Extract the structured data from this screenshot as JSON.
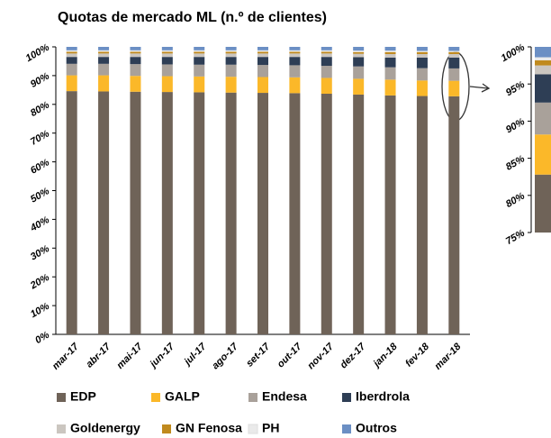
{
  "chart_data": [
    {
      "type": "stacked_bar",
      "title": "Quotas de mercado ML (n.º de clientes)",
      "categories": [
        "mar-17",
        "abr-17",
        "mai-17",
        "jun-17",
        "jul-17",
        "ago-17",
        "set-17",
        "out-17",
        "nov-17",
        "dez-17",
        "jan-18",
        "fev-18",
        "mar-18"
      ],
      "series": [
        {
          "name": "EDP",
          "color": "#6f6358",
          "values": [
            84.6,
            84.5,
            84.4,
            84.3,
            84.2,
            84.1,
            84.0,
            83.9,
            83.7,
            83.4,
            83.1,
            82.9,
            82.8
          ]
        },
        {
          "name": "GALP",
          "color": "#fbb829",
          "values": [
            5.5,
            5.6,
            5.5,
            5.5,
            5.5,
            5.5,
            5.5,
            5.5,
            5.5,
            5.5,
            5.5,
            5.4,
            5.4
          ]
        },
        {
          "name": "Endesa",
          "color": "#a9a19a",
          "values": [
            4.0,
            4.0,
            4.1,
            4.1,
            4.1,
            4.2,
            4.2,
            4.2,
            4.2,
            4.3,
            4.3,
            4.3,
            4.3
          ]
        },
        {
          "name": "Iberdrola",
          "color": "#2e3e55",
          "values": [
            2.4,
            2.4,
            2.5,
            2.6,
            2.7,
            2.7,
            2.8,
            2.9,
            3.1,
            3.2,
            3.4,
            3.7,
            3.8
          ]
        },
        {
          "name": "Goldenergy",
          "color": "#cbc6c0",
          "values": [
            1.2,
            1.2,
            1.2,
            1.2,
            1.2,
            1.2,
            1.2,
            1.2,
            1.2,
            1.2,
            1.2,
            1.2,
            1.2
          ]
        },
        {
          "name": "GN Fenosa",
          "color": "#c08a1e",
          "values": [
            0.6,
            0.6,
            0.6,
            0.6,
            0.6,
            0.6,
            0.6,
            0.6,
            0.6,
            0.6,
            0.7,
            0.7,
            0.7
          ]
        },
        {
          "name": "PH",
          "color": "#eaeaea",
          "values": [
            0.5,
            0.5,
            0.5,
            0.5,
            0.5,
            0.5,
            0.5,
            0.5,
            0.5,
            0.5,
            0.5,
            0.4,
            0.4
          ]
        },
        {
          "name": "Outros",
          "color": "#6b8fc4",
          "values": [
            1.2,
            1.2,
            1.2,
            1.2,
            1.2,
            1.2,
            1.2,
            1.2,
            1.2,
            1.3,
            1.3,
            1.4,
            1.4
          ]
        }
      ],
      "ylim": [
        0,
        100
      ],
      "yticks": [
        {
          "value": 0,
          "label": "0%"
        },
        {
          "value": 10,
          "label": "10%"
        },
        {
          "value": 20,
          "label": "20%"
        },
        {
          "value": 30,
          "label": "30%"
        },
        {
          "value": 40,
          "label": "40%"
        },
        {
          "value": 50,
          "label": "50%"
        },
        {
          "value": 60,
          "label": "60%"
        },
        {
          "value": 70,
          "label": "70%"
        },
        {
          "value": 80,
          "label": "80%"
        },
        {
          "value": 90,
          "label": "90%"
        },
        {
          "value": 100,
          "label": "100%"
        }
      ]
    },
    {
      "type": "zoom",
      "ylim": [
        75,
        100
      ],
      "yticks": [
        {
          "value": 75,
          "label": "75%"
        },
        {
          "value": 80,
          "label": "80%"
        },
        {
          "value": 85,
          "label": "85%"
        },
        {
          "value": 90,
          "label": "90%"
        },
        {
          "value": 95,
          "label": "95%"
        },
        {
          "value": 100,
          "label": "100%"
        }
      ]
    }
  ]
}
